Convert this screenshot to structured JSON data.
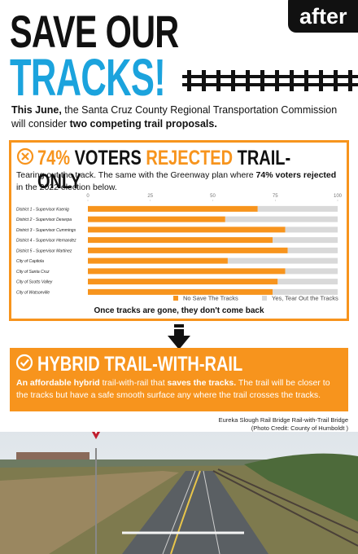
{
  "badge": "after",
  "title": {
    "line1": "SAVE OUR",
    "line2": "TRACKS!"
  },
  "intro": [
    {
      "text": "This June,",
      "bold": true
    },
    {
      "text": " the Santa Cruz County Regional Transportation Commission will consider ",
      "bold": false
    },
    {
      "text": "two competing trail proposals.",
      "bold": true
    }
  ],
  "rejected": {
    "headline": [
      {
        "text": "74%",
        "color": "#f7941d"
      },
      {
        "text": " VOTERS ",
        "color": "#111111"
      },
      {
        "text": "REJECTED",
        "color": "#f7941d"
      },
      {
        "text": " TRAIL-ONLY",
        "color": "#111111"
      }
    ],
    "description": [
      {
        "text": "Tearing out the track. The same with the Greenway plan where ",
        "bold": false
      },
      {
        "text": "74% voters rejected",
        "bold": true
      },
      {
        "text": " in the 2022 election below.",
        "bold": false
      }
    ],
    "footer": "Once tracks are gone, they don't come back"
  },
  "chart_data": {
    "type": "stacked-barh",
    "categories": [
      "District 1 - Supervisor Koenig",
      "District 2 - Supervisor Deserpa",
      "District 3 - Supervisor Cummings",
      "District 4 - Supervisor Hernandez",
      "District 5 - Supervisor Martinez",
      "City of Capitola",
      "City of Santa Cruz",
      "City of Scotts Valley",
      "City of Watsonville"
    ],
    "series": [
      {
        "name": "No Save The Tracks",
        "color": "#f7941d",
        "values": [
          68,
          55,
          79,
          74,
          80,
          56,
          79,
          76,
          74
        ]
      },
      {
        "name": "Yes, Tear Out the Tracks",
        "color": "#d9d9d9",
        "values": [
          32,
          45,
          21,
          26,
          20,
          44,
          21,
          24,
          26
        ]
      }
    ],
    "xlim": [
      0,
      100
    ],
    "xticks": [
      0,
      25,
      50,
      75,
      100
    ]
  },
  "hybrid": {
    "headline": "HYBRID TRAIL-WITH-RAIL",
    "description": [
      {
        "text": "An affordable hybrid",
        "bold": true
      },
      {
        "text": " trail-with-rail that ",
        "bold": false
      },
      {
        "text": "saves the tracks.",
        "bold": true
      },
      {
        "text": " The trail will be closer to the tracks but have a safe smooth surface any where the trail crosses the tracks.",
        "bold": false
      }
    ]
  },
  "photo": {
    "caption": [
      "Eureka Slough Rail Bridge Rail-with-Trail Bridge",
      "(Photo Credit: County of Humboldt )"
    ]
  }
}
